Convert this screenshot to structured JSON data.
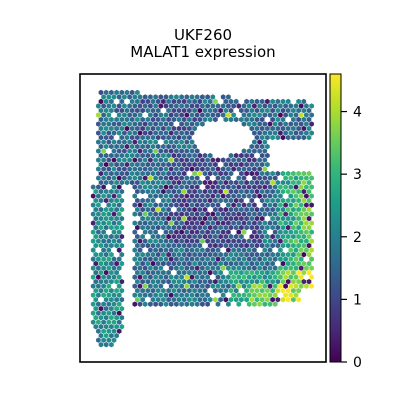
{
  "chart_data": {
    "type": "scatter",
    "subtype": "spatial-transcriptomics-spot-map",
    "title_line1": "UKF260",
    "title_line2": "MALAT1 expression",
    "xlabel": "",
    "ylabel": "",
    "grid": false,
    "axes_ticks": false,
    "marker": "hexagon",
    "colormap": "viridis",
    "colorbar": {
      "vmin": 0,
      "vmax": 4.6,
      "ticks": [
        0,
        1,
        2,
        3,
        4
      ],
      "tick_labels": [
        "0",
        "1",
        "2",
        "3",
        "4"
      ]
    },
    "value_distribution": {
      "typical_range": [
        1.0,
        2.5
      ],
      "high_regions": [
        "right edge of main tissue",
        "bottom-right of main tissue"
      ],
      "low_regions": [
        "upper interior of main tissue"
      ],
      "max_value_approx": 4.6,
      "min_value_approx": 0.0
    },
    "tissue_regions": [
      "main section",
      "left vertical strip"
    ],
    "holes": [
      "upper-middle gap",
      "upper-right notch"
    ]
  },
  "colors": {
    "viridis_stops": [
      "#440154",
      "#482878",
      "#3e4989",
      "#31688e",
      "#26828e",
      "#1f9e89",
      "#35b779",
      "#6ece58",
      "#b5de2b",
      "#fde725"
    ],
    "frame": "#000000",
    "background": "#ffffff"
  }
}
